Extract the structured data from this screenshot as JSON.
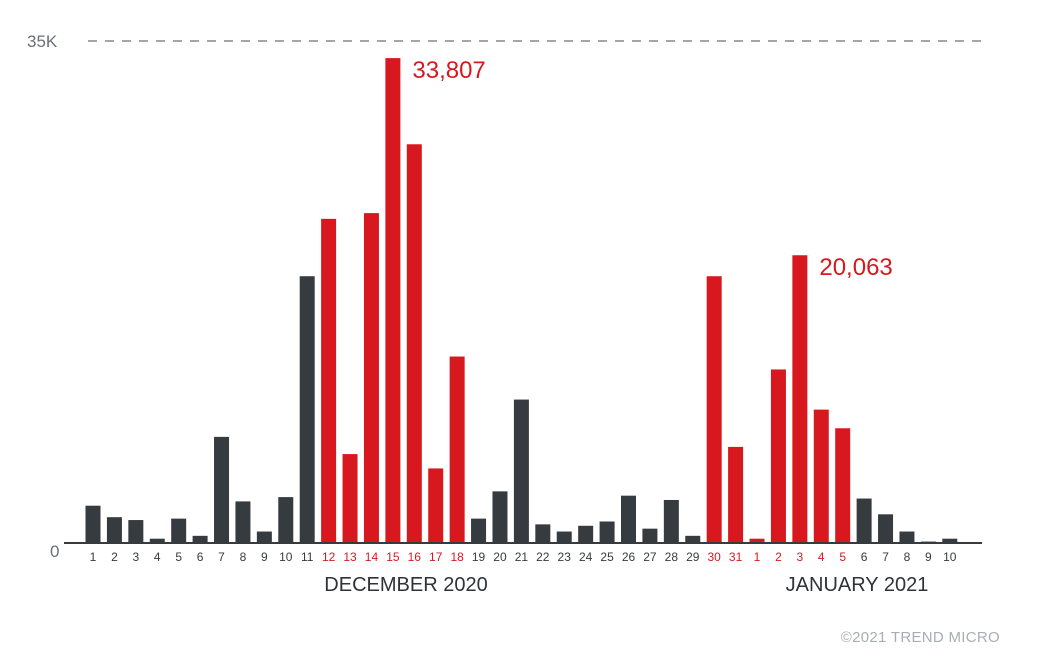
{
  "chart_data": {
    "type": "bar",
    "title": "",
    "xlabel": "",
    "ylabel": "",
    "ylim": [
      0,
      35000
    ],
    "y_ticks": [
      "0",
      "35K"
    ],
    "grid": "dashed line at 35K",
    "group_labels": [
      "DECEMBER 2020",
      "JANUARY 2021"
    ],
    "categories": [
      "1",
      "2",
      "3",
      "4",
      "5",
      "6",
      "7",
      "8",
      "9",
      "10",
      "11",
      "12",
      "13",
      "14",
      "15",
      "16",
      "17",
      "18",
      "19",
      "20",
      "21",
      "22",
      "23",
      "24",
      "25",
      "26",
      "27",
      "28",
      "29",
      "30",
      "31",
      "1",
      "2",
      "3",
      "4",
      "5",
      "6",
      "7",
      "8",
      "9",
      "10"
    ],
    "months": [
      "Dec",
      "Dec",
      "Dec",
      "Dec",
      "Dec",
      "Dec",
      "Dec",
      "Dec",
      "Dec",
      "Dec",
      "Dec",
      "Dec",
      "Dec",
      "Dec",
      "Dec",
      "Dec",
      "Dec",
      "Dec",
      "Dec",
      "Dec",
      "Dec",
      "Dec",
      "Dec",
      "Dec",
      "Dec",
      "Dec",
      "Dec",
      "Dec",
      "Dec",
      "Dec",
      "Dec",
      "Jan",
      "Jan",
      "Jan",
      "Jan",
      "Jan",
      "Jan",
      "Jan",
      "Jan",
      "Jan",
      "Jan"
    ],
    "values": [
      2600,
      1800,
      1600,
      300,
      1700,
      500,
      7400,
      2900,
      800,
      3200,
      18600,
      22600,
      6200,
      23000,
      33807,
      27800,
      5200,
      13000,
      1700,
      3600,
      10000,
      1300,
      800,
      1200,
      1500,
      3300,
      1000,
      3000,
      500,
      18600,
      6700,
      300,
      12100,
      20063,
      9300,
      8000,
      3100,
      2000,
      800,
      100,
      300
    ],
    "highlighted": [
      false,
      false,
      false,
      false,
      false,
      false,
      false,
      false,
      false,
      false,
      false,
      true,
      true,
      true,
      true,
      true,
      true,
      true,
      false,
      false,
      false,
      false,
      false,
      false,
      false,
      false,
      false,
      false,
      false,
      true,
      true,
      true,
      true,
      true,
      true,
      true,
      false,
      false,
      false,
      false,
      false
    ],
    "annotations": [
      {
        "index": 14,
        "text": "33,807"
      },
      {
        "index": 33,
        "text": "20,063"
      }
    ],
    "colors": {
      "highlight": "#d7191f",
      "normal": "#363b40",
      "axis": "#363b40"
    }
  },
  "footer": {
    "copyright": "©2021 TREND MICRO"
  }
}
